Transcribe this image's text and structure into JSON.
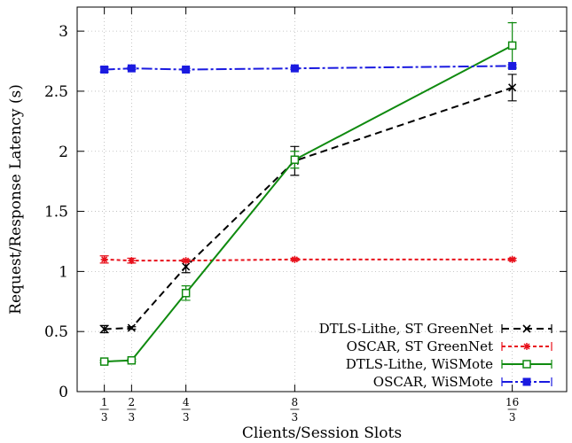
{
  "chart_data": {
    "type": "line",
    "xlabel": "Clients/Session Slots",
    "ylabel": "Request/Response Latency (s)",
    "xlim": [
      0,
      6
    ],
    "ylim": [
      0,
      3.2
    ],
    "grid": true,
    "legend_position": "bottom-right",
    "x_ticks": [
      {
        "value": 0.333,
        "num": "1",
        "den": "3"
      },
      {
        "value": 0.667,
        "num": "2",
        "den": "3"
      },
      {
        "value": 1.333,
        "num": "4",
        "den": "3"
      },
      {
        "value": 2.667,
        "num": "8",
        "den": "3"
      },
      {
        "value": 5.333,
        "num": "16",
        "den": "3"
      }
    ],
    "y_ticks": [
      {
        "value": 0,
        "label": "0"
      },
      {
        "value": 0.5,
        "label": "0.5"
      },
      {
        "value": 1,
        "label": "1"
      },
      {
        "value": 1.5,
        "label": "1.5"
      },
      {
        "value": 2,
        "label": "2"
      },
      {
        "value": 2.5,
        "label": "2.5"
      },
      {
        "value": 3,
        "label": "3"
      }
    ],
    "x": [
      0.333,
      0.667,
      1.333,
      2.667,
      5.333
    ],
    "series": [
      {
        "name": "DTLS-Lithe, ST GreenNet",
        "color": "#000000",
        "dash": "8,5",
        "marker": "x",
        "values": [
          0.52,
          0.53,
          1.04,
          1.92,
          2.53
        ],
        "err": [
          0.03,
          0.01,
          0.05,
          0.12,
          0.11
        ]
      },
      {
        "name": "OSCAR, ST GreenNet",
        "color": "#e8101b",
        "dash": "4,3",
        "marker": "star",
        "values": [
          1.1,
          1.09,
          1.09,
          1.1,
          1.1
        ],
        "err": [
          0.03,
          0.02,
          0.01,
          0.01,
          0.01
        ]
      },
      {
        "name": "DTLS-Lithe, WiSMote",
        "color": "#0f8a0f",
        "dash": "",
        "marker": "square-open",
        "values": [
          0.25,
          0.26,
          0.82,
          1.93,
          2.88
        ],
        "err": [
          0.01,
          0.01,
          0.06,
          0.07,
          0.19
        ]
      },
      {
        "name": "OSCAR, WiSMote",
        "color": "#1a1ae0",
        "dash": "12,3,3,3",
        "marker": "square-filled",
        "values": [
          2.68,
          2.69,
          2.68,
          2.69,
          2.71
        ],
        "err": [
          0.02,
          0.01,
          0.01,
          0.01,
          0.01
        ]
      }
    ]
  }
}
